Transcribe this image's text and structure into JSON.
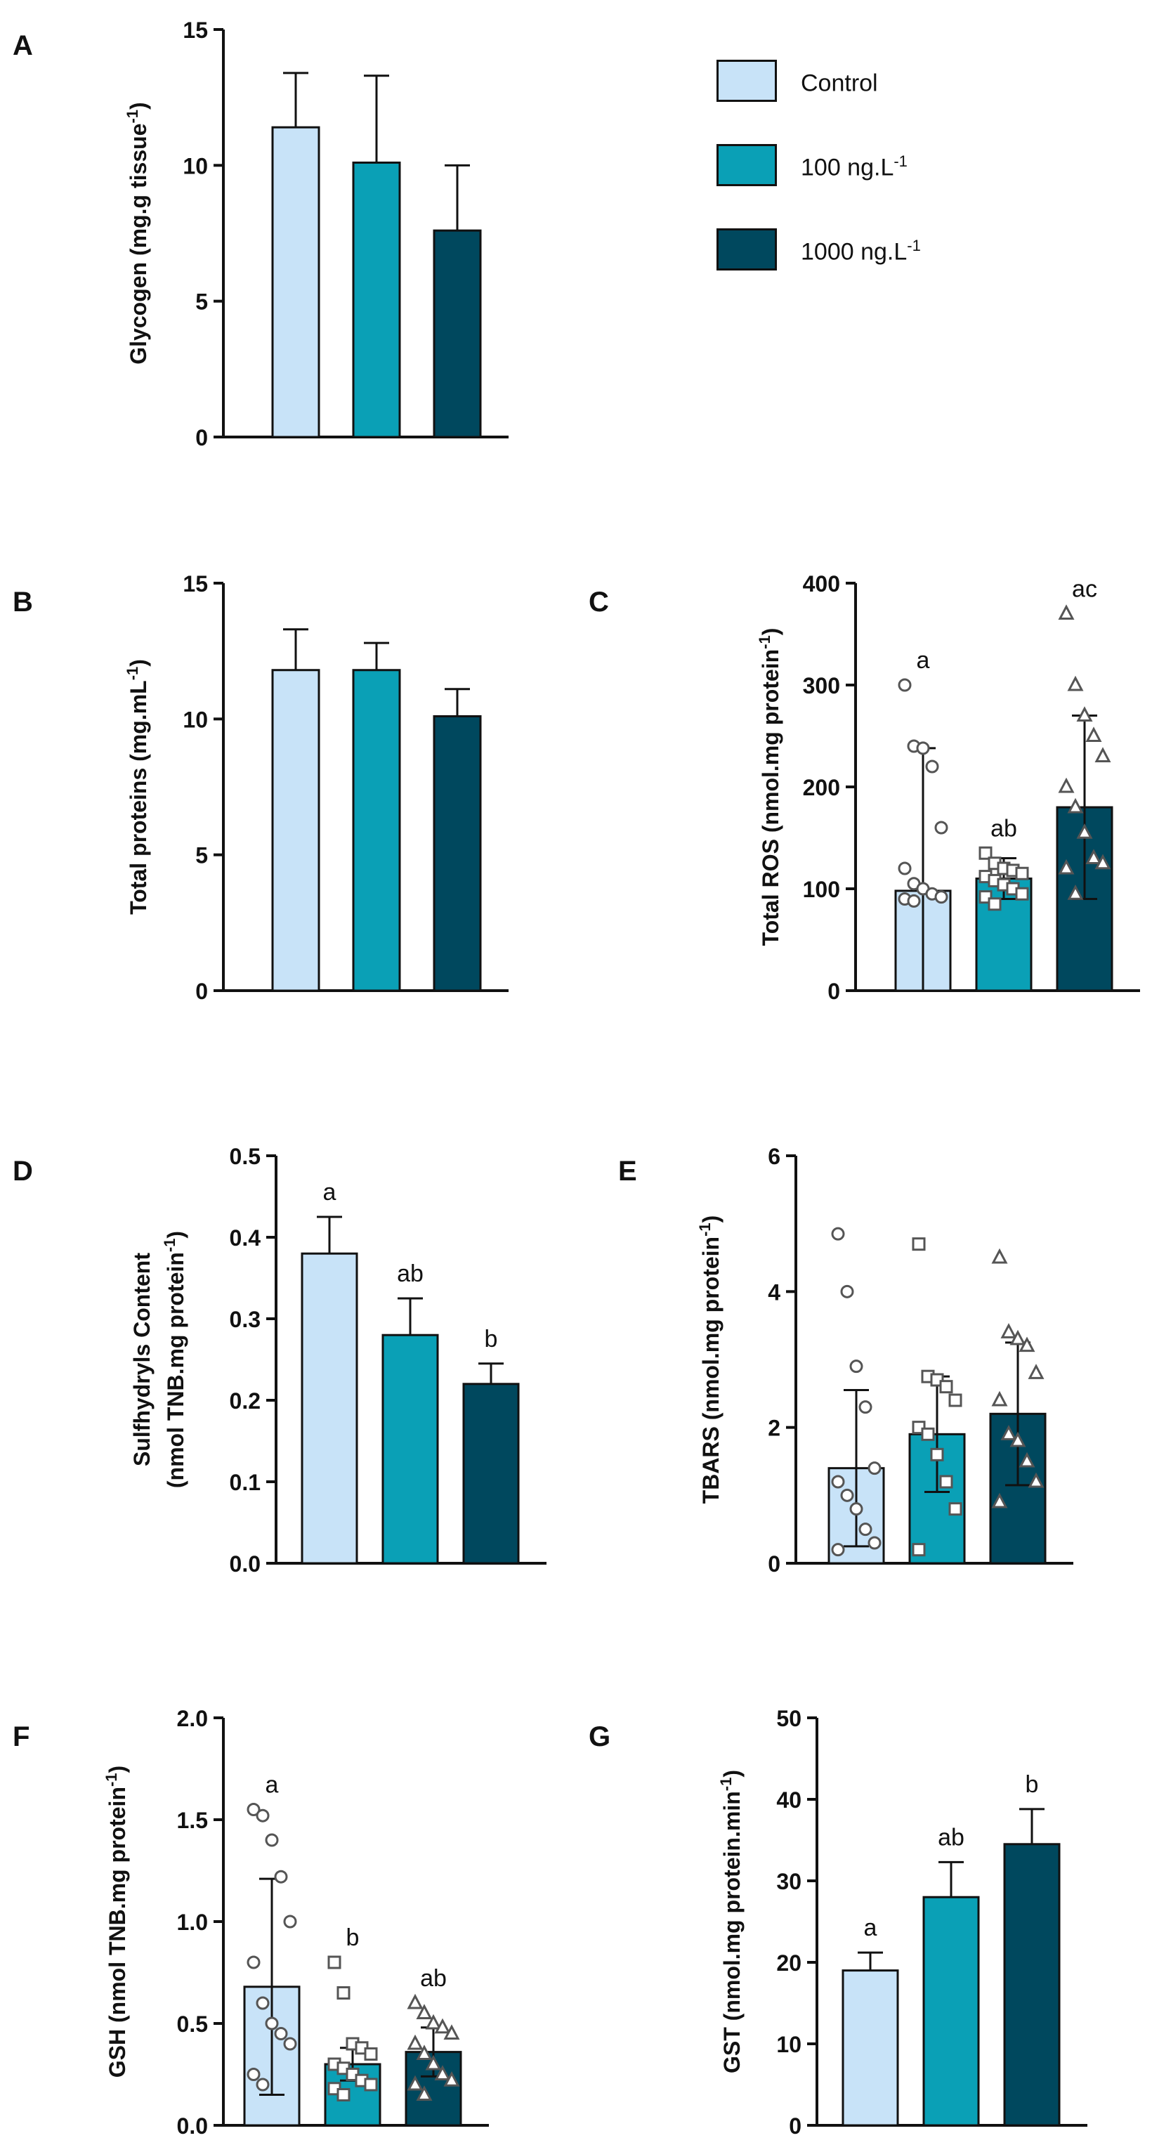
{
  "colors": {
    "control": "#c8e3f8",
    "c100": "#0aa0b6",
    "c1000": "#00485e",
    "axis": "#111111"
  },
  "legend": [
    {
      "key": "control",
      "label": "Control",
      "sup": ""
    },
    {
      "key": "c100",
      "label": "100 ng.L",
      "sup": "-1"
    },
    {
      "key": "c1000",
      "label": "1000 ng.L",
      "sup": "-1"
    }
  ],
  "chart_data": [
    {
      "panel": "A",
      "type": "bar",
      "title": "",
      "categories": [
        "Control",
        "100 ng.L-1",
        "1000 ng.L-1"
      ],
      "values": [
        11.4,
        10.1,
        7.6
      ],
      "errors": [
        2.0,
        3.2,
        2.4
      ],
      "ylabel": "Glycogen (mg.g tissue",
      "ylabel_sup": "-1",
      "ylabel_end": ")",
      "ylim": [
        0,
        15
      ],
      "yticks": [
        "0",
        "5",
        "10",
        "15"
      ],
      "ytick_values": [
        0,
        5,
        10,
        15
      ],
      "letters": [
        "",
        "",
        ""
      ]
    },
    {
      "panel": "B",
      "type": "bar",
      "title": "",
      "categories": [
        "Control",
        "100 ng.L-1",
        "1000 ng.L-1"
      ],
      "values": [
        11.8,
        11.8,
        10.1
      ],
      "errors": [
        1.5,
        1.0,
        1.0
      ],
      "ylabel": "Total proteins (mg.mL",
      "ylabel_sup": "-1",
      "ylabel_end": ")",
      "ylim": [
        0,
        15
      ],
      "yticks": [
        "0",
        "5",
        "10",
        "15"
      ],
      "ytick_values": [
        0,
        5,
        10,
        15
      ],
      "letters": [
        "",
        "",
        ""
      ]
    },
    {
      "panel": "C",
      "type": "bar",
      "title": "",
      "categories": [
        "Control",
        "100 ng.L-1",
        "1000 ng.L-1"
      ],
      "values": [
        98,
        110,
        180
      ],
      "errors": [
        140,
        20,
        90
      ],
      "ylabel": "Total ROS (nmol.mg protein",
      "ylabel_sup": "-1",
      "ylabel_end": ")",
      "ylim": [
        0,
        400
      ],
      "yticks": [
        "0",
        "100",
        "200",
        "300",
        "400"
      ],
      "ytick_values": [
        0,
        100,
        200,
        300,
        400
      ],
      "letters": [
        "a",
        "ab",
        "ac"
      ],
      "points": [
        [
          300,
          240,
          238,
          220,
          160,
          120,
          105,
          100,
          95,
          92,
          90,
          88
        ],
        [
          135,
          125,
          120,
          118,
          115,
          112,
          108,
          104,
          100,
          95,
          92,
          85
        ],
        [
          370,
          300,
          270,
          250,
          230,
          200,
          180,
          155,
          130,
          125,
          120,
          95
        ]
      ]
    },
    {
      "panel": "D",
      "type": "bar",
      "title": "",
      "categories": [
        "Control",
        "100 ng.L-1",
        "1000 ng.L-1"
      ],
      "values": [
        0.38,
        0.28,
        0.22
      ],
      "errors": [
        0.045,
        0.045,
        0.025
      ],
      "ylabel": "Sulfhydryls Content",
      "ylabel2": "(nmol TNB.mg protein",
      "ylabel_sup": "-1",
      "ylabel_end": ")",
      "ylim": [
        0,
        0.5
      ],
      "yticks": [
        "0.0",
        "0.1",
        "0.2",
        "0.3",
        "0.4",
        "0.5"
      ],
      "ytick_values": [
        0,
        0.1,
        0.2,
        0.3,
        0.4,
        0.5
      ],
      "letters": [
        "a",
        "ab",
        "b"
      ]
    },
    {
      "panel": "E",
      "type": "bar",
      "title": "",
      "categories": [
        "Control",
        "100 ng.L-1",
        "1000 ng.L-1"
      ],
      "values": [
        1.4,
        1.9,
        2.2
      ],
      "errors": [
        1.15,
        0.85,
        1.05
      ],
      "ylabel": "TBARS (nmol.mg protein",
      "ylabel_sup": "-1",
      "ylabel_end": ")",
      "ylim": [
        0,
        6
      ],
      "yticks": [
        "0",
        "2",
        "4",
        "6"
      ],
      "ytick_values": [
        0,
        2,
        4,
        6
      ],
      "letters": [
        "",
        "",
        ""
      ],
      "points": [
        [
          4.85,
          4.0,
          2.9,
          2.3,
          1.4,
          1.2,
          1.0,
          0.8,
          0.5,
          0.3,
          0.2
        ],
        [
          4.7,
          2.75,
          2.7,
          2.6,
          2.4,
          2.0,
          1.9,
          1.6,
          1.2,
          0.8,
          0.2
        ],
        [
          4.5,
          3.4,
          3.3,
          3.2,
          2.8,
          2.4,
          1.9,
          1.8,
          1.5,
          1.2,
          0.9
        ]
      ]
    },
    {
      "panel": "F",
      "type": "bar",
      "title": "",
      "categories": [
        "Control",
        "100 ng.L-1",
        "1000 ng.L-1"
      ],
      "values": [
        0.68,
        0.3,
        0.36
      ],
      "errors": [
        0.53,
        0.08,
        0.12
      ],
      "ylabel": "GSH (nmol TNB.mg protein",
      "ylabel_sup": "-1",
      "ylabel_end": ")",
      "ylim": [
        0,
        2.0
      ],
      "yticks": [
        "0.0",
        "0.5",
        "1.0",
        "1.5",
        "2.0"
      ],
      "ytick_values": [
        0,
        0.5,
        1.0,
        1.5,
        2.0
      ],
      "letters": [
        "a",
        "b",
        "ab"
      ],
      "points": [
        [
          1.55,
          1.52,
          1.4,
          1.22,
          1.0,
          0.8,
          0.6,
          0.5,
          0.45,
          0.4,
          0.25,
          0.2
        ],
        [
          0.8,
          0.65,
          0.4,
          0.38,
          0.35,
          0.3,
          0.28,
          0.25,
          0.22,
          0.2,
          0.18,
          0.15
        ],
        [
          0.6,
          0.55,
          0.5,
          0.48,
          0.45,
          0.4,
          0.35,
          0.3,
          0.25,
          0.22,
          0.2,
          0.15
        ]
      ]
    },
    {
      "panel": "G",
      "type": "bar",
      "title": "",
      "categories": [
        "Control",
        "100 ng.L-1",
        "1000 ng.L-1"
      ],
      "values": [
        19,
        28,
        34.5
      ],
      "errors": [
        2.2,
        4.3,
        4.3
      ],
      "ylabel": "GST (nmol.mg protein.min",
      "ylabel_sup": "-1",
      "ylabel_end": ")",
      "ylim": [
        0,
        50
      ],
      "yticks": [
        "0",
        "10",
        "20",
        "30",
        "40",
        "50"
      ],
      "ytick_values": [
        0,
        10,
        20,
        30,
        40,
        50
      ],
      "letters": [
        "a",
        "ab",
        "b"
      ]
    }
  ]
}
